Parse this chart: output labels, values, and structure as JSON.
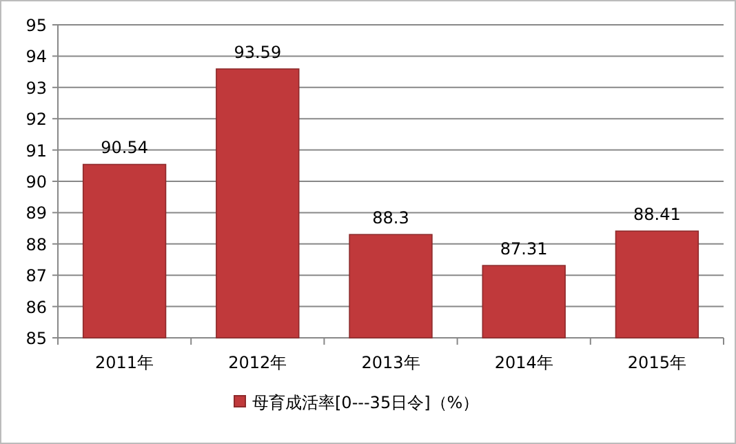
{
  "chart_data": {
    "type": "bar",
    "categories": [
      "2011年",
      "2012年",
      "2013年",
      "2014年",
      "2015年"
    ],
    "series": [
      {
        "name": "母育成活率[0---35日令]（%）",
        "color": "#c0393b",
        "values": [
          90.54,
          93.59,
          88.3,
          87.31,
          88.41
        ]
      }
    ],
    "ylim": [
      85,
      95
    ],
    "yticks": [
      85,
      86,
      87,
      88,
      89,
      90,
      91,
      92,
      93,
      94,
      95
    ],
    "grid": "y",
    "legend": "bottom",
    "data_labels": true
  }
}
